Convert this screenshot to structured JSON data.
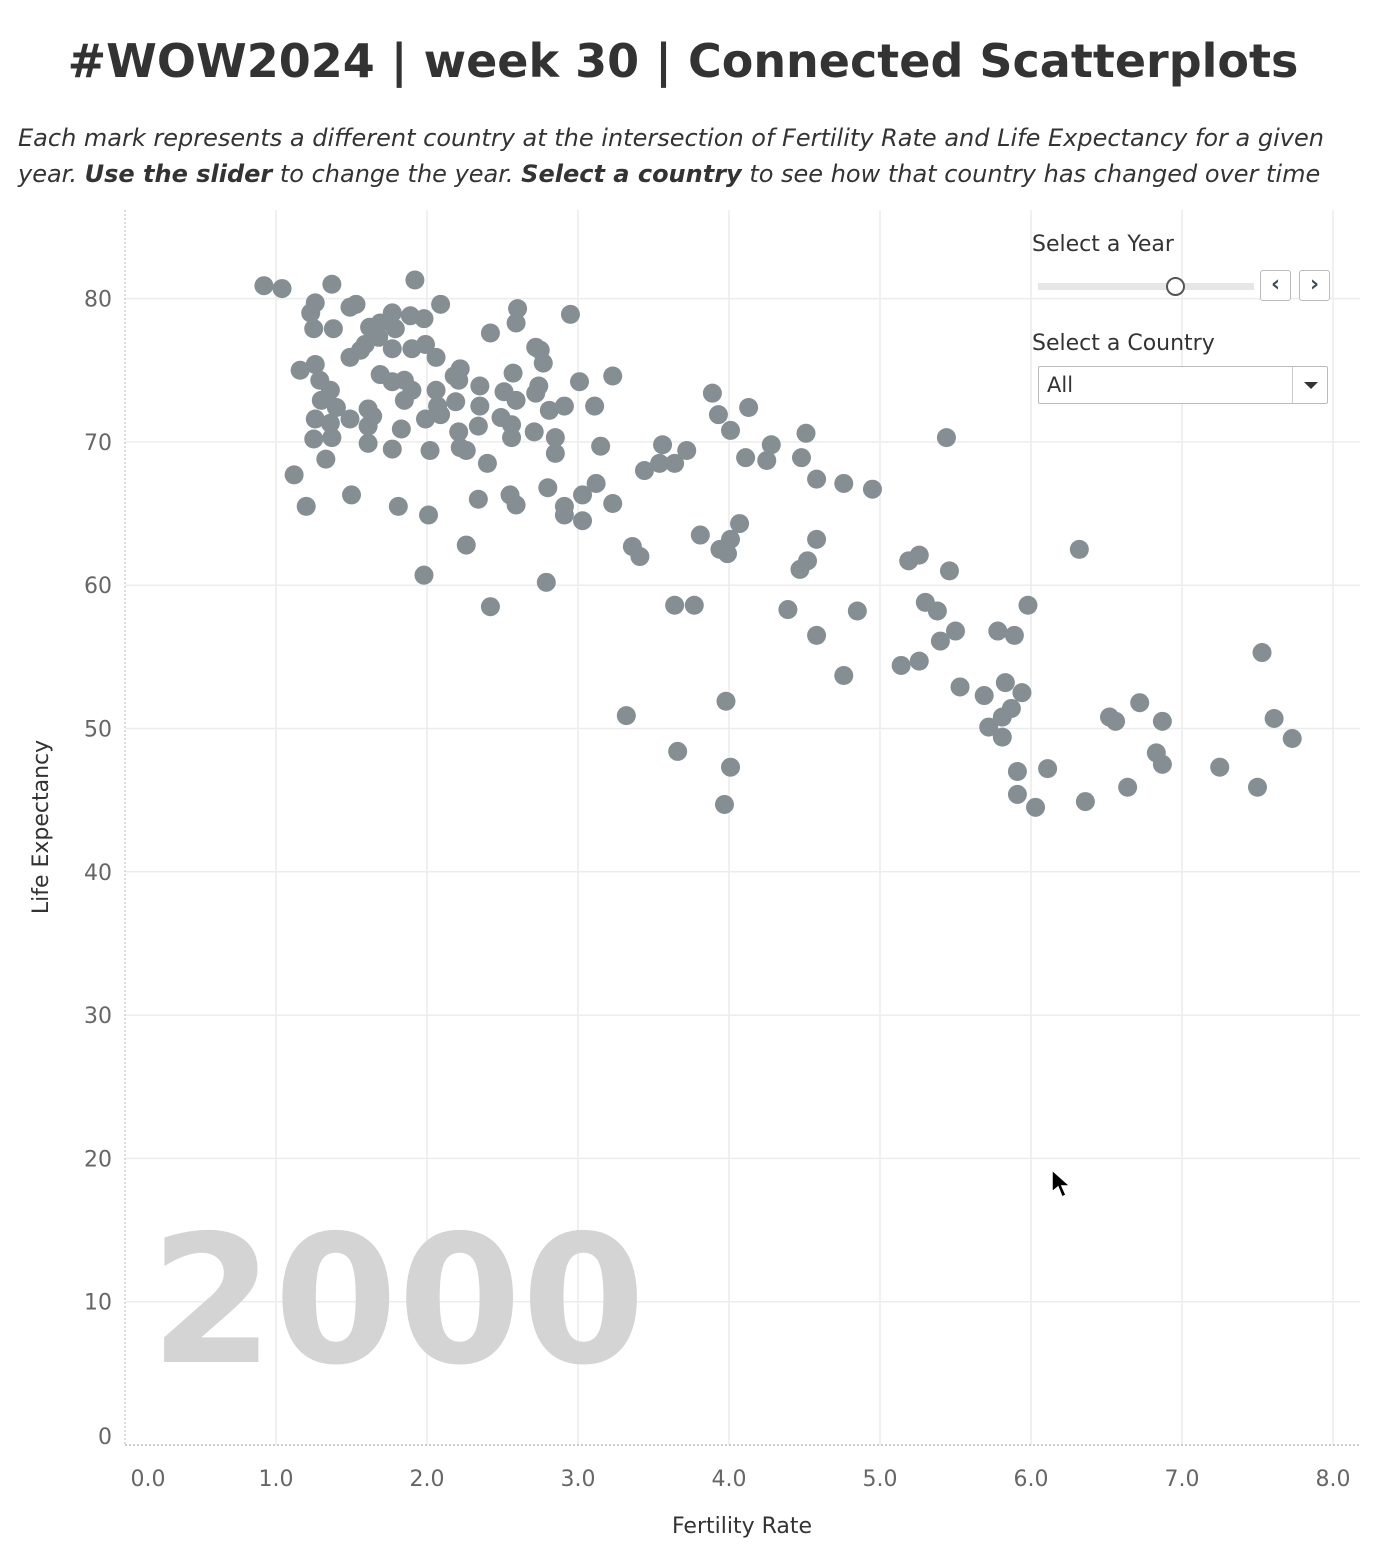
{
  "header": {
    "title": "#WOW2024 | week 30 | Connected Scatterplots",
    "subtitle_parts": [
      "Each mark represents a different country at the intersection of Fertility Rate and Life Expectancy for a given year. ",
      "Use the slider",
      " to change the year. ",
      "Select a country",
      " to see how that country has changed over time"
    ]
  },
  "controls": {
    "year_label": "Select a Year",
    "prev_icon": "chevron-left-icon",
    "next_icon": "chevron-right-icon",
    "year_slider_fraction": 0.63,
    "country_label": "Select a Country",
    "country_value": "All"
  },
  "colors": {
    "mark": "#848e93",
    "grid": "#ececec",
    "year_watermark": "#d4d4d4"
  },
  "chart_data": {
    "type": "scatter",
    "title": "",
    "xlabel": "Fertility Rate",
    "ylabel": "Life Expectancy",
    "xlim": [
      0,
      8
    ],
    "ylim": [
      0,
      85
    ],
    "x_ticks": [
      "0.0",
      "1.0",
      "2.0",
      "3.0",
      "4.0",
      "5.0",
      "6.0",
      "7.0",
      "8.0"
    ],
    "y_ticks": [
      "0",
      "10",
      "20",
      "30",
      "40",
      "50",
      "60",
      "70",
      "80"
    ],
    "grid": true,
    "year_annotation": "2000",
    "points": [
      [
        0.92,
        80.9
      ],
      [
        1.04,
        80.7
      ],
      [
        1.37,
        81.0
      ],
      [
        1.92,
        81.3
      ],
      [
        1.23,
        79.0
      ],
      [
        1.26,
        79.7
      ],
      [
        1.49,
        79.4
      ],
      [
        1.53,
        79.6
      ],
      [
        2.09,
        79.6
      ],
      [
        2.6,
        79.3
      ],
      [
        2.95,
        78.9
      ],
      [
        1.25,
        77.9
      ],
      [
        1.38,
        77.9
      ],
      [
        2.59,
        78.3
      ],
      [
        2.42,
        77.6
      ],
      [
        1.62,
        78.0
      ],
      [
        1.69,
        78.3
      ],
      [
        1.77,
        79.0
      ],
      [
        1.89,
        78.8
      ],
      [
        1.98,
        78.6
      ],
      [
        1.79,
        77.9
      ],
      [
        1.68,
        77.3
      ],
      [
        1.59,
        76.8
      ],
      [
        1.77,
        76.5
      ],
      [
        1.9,
        76.5
      ],
      [
        1.99,
        76.8
      ],
      [
        2.06,
        75.9
      ],
      [
        1.49,
        75.9
      ],
      [
        1.56,
        76.4
      ],
      [
        2.72,
        76.6
      ],
      [
        2.77,
        75.5
      ],
      [
        2.75,
        76.4
      ],
      [
        1.16,
        75.0
      ],
      [
        1.26,
        75.4
      ],
      [
        1.29,
        74.3
      ],
      [
        1.69,
        74.7
      ],
      [
        1.77,
        74.2
      ],
      [
        1.85,
        74.3
      ],
      [
        1.9,
        73.6
      ],
      [
        1.85,
        72.9
      ],
      [
        2.18,
        74.6
      ],
      [
        2.22,
        75.1
      ],
      [
        2.21,
        74.3
      ],
      [
        2.35,
        73.9
      ],
      [
        2.57,
        74.8
      ],
      [
        2.51,
        73.5
      ],
      [
        2.59,
        72.9
      ],
      [
        2.74,
        73.9
      ],
      [
        2.72,
        73.4
      ],
      [
        3.01,
        74.2
      ],
      [
        3.23,
        74.6
      ],
      [
        1.36,
        73.6
      ],
      [
        1.3,
        72.9
      ],
      [
        1.4,
        72.4
      ],
      [
        1.49,
        71.6
      ],
      [
        1.61,
        72.3
      ],
      [
        1.64,
        71.8
      ],
      [
        1.26,
        71.6
      ],
      [
        1.36,
        71.3
      ],
      [
        1.25,
        70.2
      ],
      [
        1.37,
        70.3
      ],
      [
        1.33,
        68.8
      ],
      [
        1.61,
        71.1
      ],
      [
        1.61,
        69.9
      ],
      [
        1.77,
        69.5
      ],
      [
        1.83,
        70.9
      ],
      [
        2.06,
        73.6
      ],
      [
        2.07,
        72.5
      ],
      [
        2.09,
        71.9
      ],
      [
        1.99,
        71.6
      ],
      [
        2.19,
        72.8
      ],
      [
        2.35,
        72.5
      ],
      [
        2.34,
        71.1
      ],
      [
        2.21,
        70.7
      ],
      [
        2.22,
        69.6
      ],
      [
        2.26,
        69.4
      ],
      [
        2.02,
        69.4
      ],
      [
        2.4,
        68.5
      ],
      [
        2.49,
        71.7
      ],
      [
        2.56,
        71.2
      ],
      [
        2.56,
        70.3
      ],
      [
        2.71,
        70.7
      ],
      [
        2.81,
        72.2
      ],
      [
        2.91,
        72.5
      ],
      [
        3.11,
        72.5
      ],
      [
        2.85,
        70.3
      ],
      [
        2.85,
        69.2
      ],
      [
        3.15,
        69.7
      ],
      [
        1.12,
        67.7
      ],
      [
        1.2,
        65.5
      ],
      [
        1.5,
        66.3
      ],
      [
        1.81,
        65.5
      ],
      [
        2.01,
        64.9
      ],
      [
        2.34,
        66.0
      ],
      [
        2.55,
        66.3
      ],
      [
        2.59,
        65.6
      ],
      [
        2.8,
        66.8
      ],
      [
        2.91,
        65.5
      ],
      [
        2.91,
        64.9
      ],
      [
        3.03,
        66.3
      ],
      [
        3.03,
        64.5
      ],
      [
        3.12,
        67.1
      ],
      [
        3.23,
        65.7
      ],
      [
        2.26,
        62.8
      ],
      [
        1.98,
        60.7
      ],
      [
        2.42,
        58.5
      ],
      [
        2.79,
        60.2
      ],
      [
        3.36,
        62.7
      ],
      [
        3.41,
        62.0
      ],
      [
        3.44,
        68.0
      ],
      [
        3.54,
        68.5
      ],
      [
        3.64,
        68.5
      ],
      [
        3.56,
        69.8
      ],
      [
        3.72,
        69.4
      ],
      [
        3.89,
        73.4
      ],
      [
        3.93,
        71.9
      ],
      [
        4.01,
        70.8
      ],
      [
        4.13,
        72.4
      ],
      [
        4.11,
        68.9
      ],
      [
        4.25,
        68.7
      ],
      [
        4.28,
        69.8
      ],
      [
        4.51,
        70.6
      ],
      [
        4.48,
        68.9
      ],
      [
        4.58,
        67.4
      ],
      [
        4.76,
        67.1
      ],
      [
        4.95,
        66.7
      ],
      [
        5.44,
        70.3
      ],
      [
        3.81,
        63.5
      ],
      [
        4.07,
        64.3
      ],
      [
        4.01,
        63.2
      ],
      [
        3.94,
        62.5
      ],
      [
        3.99,
        62.2
      ],
      [
        4.47,
        61.1
      ],
      [
        4.52,
        61.7
      ],
      [
        4.58,
        63.2
      ],
      [
        3.64,
        58.6
      ],
      [
        3.77,
        58.6
      ],
      [
        4.39,
        58.3
      ],
      [
        4.58,
        56.5
      ],
      [
        4.85,
        58.2
      ],
      [
        4.76,
        53.7
      ],
      [
        5.19,
        61.7
      ],
      [
        5.26,
        62.1
      ],
      [
        5.46,
        61.0
      ],
      [
        6.32,
        62.5
      ],
      [
        5.3,
        58.8
      ],
      [
        5.38,
        58.2
      ],
      [
        5.4,
        56.1
      ],
      [
        5.5,
        56.8
      ],
      [
        5.98,
        58.6
      ],
      [
        5.78,
        56.8
      ],
      [
        5.89,
        56.5
      ],
      [
        5.14,
        54.4
      ],
      [
        5.26,
        54.7
      ],
      [
        5.53,
        52.9
      ],
      [
        5.69,
        52.3
      ],
      [
        5.83,
        53.2
      ],
      [
        5.94,
        52.5
      ],
      [
        5.87,
        51.4
      ],
      [
        5.81,
        50.8
      ],
      [
        5.72,
        50.1
      ],
      [
        5.81,
        49.4
      ],
      [
        5.91,
        47.0
      ],
      [
        5.91,
        45.4
      ],
      [
        6.03,
        44.5
      ],
      [
        6.11,
        47.2
      ],
      [
        6.36,
        44.9
      ],
      [
        6.52,
        50.8
      ],
      [
        6.56,
        50.5
      ],
      [
        6.72,
        51.8
      ],
      [
        6.87,
        50.5
      ],
      [
        6.83,
        48.3
      ],
      [
        6.87,
        47.5
      ],
      [
        6.64,
        45.9
      ],
      [
        7.25,
        47.3
      ],
      [
        7.5,
        45.9
      ],
      [
        7.53,
        55.3
      ],
      [
        7.61,
        50.7
      ],
      [
        7.73,
        49.3
      ],
      [
        3.32,
        50.9
      ],
      [
        3.66,
        48.4
      ],
      [
        3.98,
        51.9
      ],
      [
        4.01,
        47.3
      ],
      [
        3.97,
        44.7
      ]
    ]
  }
}
